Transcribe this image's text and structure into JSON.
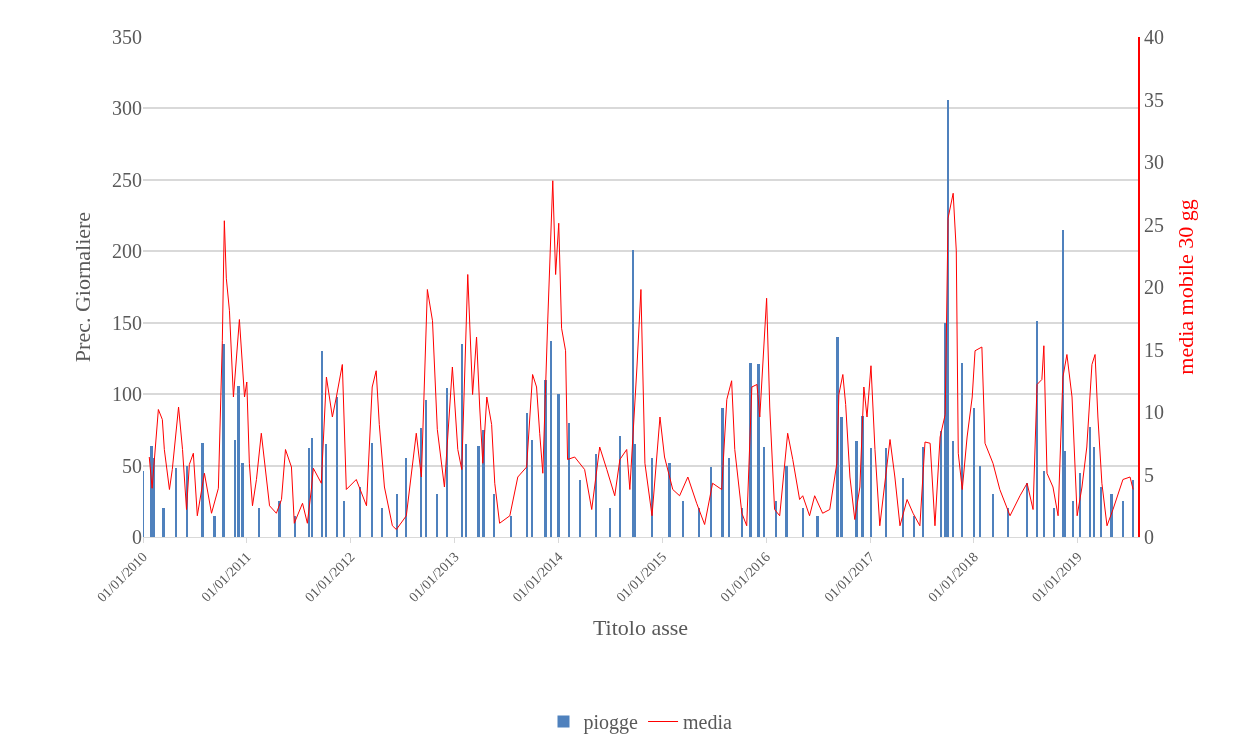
{
  "chart_data": {
    "type": "bar",
    "xlabel": "Titolo asse",
    "ylabel": "Prec. Giornaliere",
    "y2label": "media mobile 30 gg",
    "xlim": [
      "2010-01-01",
      "2019-08-01"
    ],
    "xticks": [
      {
        "value": "2010-01-01",
        "label": "01/01/2010"
      },
      {
        "value": "2011-01-01",
        "label": "01/01/2011"
      },
      {
        "value": "2012-01-01",
        "label": "01/01/2012"
      },
      {
        "value": "2013-01-01",
        "label": "01/01/2013"
      },
      {
        "value": "2014-01-01",
        "label": "01/01/2014"
      },
      {
        "value": "2015-01-01",
        "label": "01/01/2015"
      },
      {
        "value": "2016-01-01",
        "label": "01/01/2016"
      },
      {
        "value": "2017-01-01",
        "label": "01/01/2017"
      },
      {
        "value": "2018-01-01",
        "label": "01/01/2018"
      },
      {
        "value": "2019-01-01",
        "label": "01/01/2019"
      }
    ],
    "ylim": [
      0,
      350
    ],
    "yticks": [
      0,
      50,
      100,
      150,
      200,
      250,
      300,
      350
    ],
    "y2lim": [
      0,
      40
    ],
    "y2ticks": [
      0,
      5,
      10,
      15,
      20,
      25,
      30,
      35,
      40
    ],
    "grid": "y",
    "legend": "bottom",
    "series": [
      {
        "name": "piogge",
        "color": "#4f81bd",
        "x": [
          "2010-01-02",
          "2010-02-01",
          "2010-02-10",
          "2010-03-15",
          "2010-04-28",
          "2010-06-06",
          "2010-07-30",
          "2010-09-10",
          "2010-10-12",
          "2010-11-20",
          "2010-12-04",
          "2010-12-18",
          "2011-02-15",
          "2011-04-27",
          "2011-06-20",
          "2011-08-09",
          "2011-08-20",
          "2011-09-24",
          "2011-10-08",
          "2011-11-16",
          "2011-12-10",
          "2012-02-05",
          "2012-03-17",
          "2012-04-20",
          "2012-06-13",
          "2012-07-15",
          "2012-09-06",
          "2012-09-24",
          "2012-11-01",
          "2012-12-06",
          "2013-01-29",
          "2013-02-11",
          "2013-03-27",
          "2013-04-13",
          "2013-05-20",
          "2013-07-20",
          "2013-09-14",
          "2013-10-02",
          "2013-11-17",
          "2013-12-08",
          "2014-01-02",
          "2014-02-08",
          "2014-03-20",
          "2014-05-15",
          "2014-07-01",
          "2014-08-05",
          "2014-09-21",
          "2014-09-28",
          "2014-11-26",
          "2015-01-27",
          "2015-03-15",
          "2015-05-10",
          "2015-06-23",
          "2015-08-02",
          "2015-08-25",
          "2015-10-10",
          "2015-11-08",
          "2015-12-06",
          "2015-12-27",
          "2016-02-05",
          "2016-03-14",
          "2016-05-10",
          "2016-07-01",
          "2016-09-09",
          "2016-09-23",
          "2016-11-15",
          "2016-12-06",
          "2017-01-04",
          "2017-02-26",
          "2017-04-27",
          "2017-06-05",
          "2017-07-06",
          "2017-09-07",
          "2017-09-24",
          "2017-10-02",
          "2017-10-20",
          "2017-11-21",
          "2018-01-01",
          "2018-01-22",
          "2018-03-10",
          "2018-05-01",
          "2018-07-07",
          "2018-08-11",
          "2018-09-04",
          "2018-10-10",
          "2018-11-10",
          "2018-11-17",
          "2018-12-15",
          "2019-01-09",
          "2019-02-13",
          "2019-02-27",
          "2019-03-25",
          "2019-05-01",
          "2019-06-10",
          "2019-07-15"
        ],
        "values": [
          46,
          64,
          55,
          20,
          48,
          50,
          66,
          15,
          135,
          68,
          106,
          52,
          20,
          25,
          15,
          62,
          69,
          130,
          65,
          98,
          25,
          35,
          66,
          20,
          30,
          55,
          76,
          96,
          30,
          104,
          135,
          65,
          64,
          75,
          30,
          15,
          87,
          68,
          110,
          137,
          100,
          80,
          40,
          58,
          20,
          71,
          201,
          65,
          55,
          52,
          25,
          20,
          49,
          90,
          55,
          20,
          122,
          121,
          63,
          25,
          50,
          20,
          15,
          140,
          84,
          67,
          85,
          62,
          62,
          41,
          15,
          63,
          74,
          150,
          306,
          67,
          122,
          90,
          50,
          30,
          20,
          38,
          151,
          46,
          20,
          215,
          60,
          25,
          45,
          77,
          63,
          35,
          30,
          25,
          40
        ]
      },
      {
        "name": "media",
        "type": "line",
        "axis": "y2",
        "color": "#ff0000",
        "line_style": "solid",
        "x": [
          "2010-01-23",
          "2010-02-02",
          "2010-02-24",
          "2010-03-10",
          "2010-03-17",
          "2010-04-04",
          "2010-04-14",
          "2010-05-06",
          "2010-05-20",
          "2010-06-03",
          "2010-06-13",
          "2010-06-27",
          "2010-07-11",
          "2010-08-05",
          "2010-08-30",
          "2010-09-23",
          "2010-10-07",
          "2010-10-14",
          "2010-10-21",
          "2010-11-01",
          "2010-11-15",
          "2010-12-06",
          "2010-12-24",
          "2011-01-01",
          "2011-01-10",
          "2011-01-21",
          "2011-02-04",
          "2011-02-21",
          "2011-03-22",
          "2011-04-15",
          "2011-05-03",
          "2011-05-17",
          "2011-06-07",
          "2011-06-17",
          "2011-07-16",
          "2011-08-02",
          "2011-08-16",
          "2011-08-23",
          "2011-09-20",
          "2011-10-08",
          "2011-10-29",
          "2011-11-12",
          "2011-12-03",
          "2011-12-17",
          "2012-01-21",
          "2012-02-26",
          "2012-03-17",
          "2012-03-31",
          "2012-04-11",
          "2012-04-29",
          "2012-05-27",
          "2012-06-10",
          "2012-07-15",
          "2012-08-19",
          "2012-09-06",
          "2012-09-27",
          "2012-10-15",
          "2012-11-01",
          "2012-11-26",
          "2012-12-24",
          "2013-01-12",
          "2013-01-26",
          "2013-02-16",
          "2013-03-05",
          "2013-03-19",
          "2013-03-30",
          "2013-04-10",
          "2013-04-24",
          "2013-05-11",
          "2013-05-22",
          "2013-06-08",
          "2013-07-14",
          "2013-08-11",
          "2013-09-11",
          "2013-10-02",
          "2013-10-16",
          "2013-10-27",
          "2013-11-07",
          "2013-11-24",
          "2013-12-12",
          "2013-12-22",
          "2014-01-02",
          "2014-01-12",
          "2014-01-26",
          "2014-02-02",
          "2014-02-27",
          "2014-04-03",
          "2014-04-28",
          "2014-05-26",
          "2014-06-20",
          "2014-07-18",
          "2014-08-05",
          "2014-08-29",
          "2014-09-09",
          "2014-10-04",
          "2014-10-18",
          "2014-11-01",
          "2014-11-26",
          "2014-12-24",
          "2015-01-09",
          "2015-02-07",
          "2015-03-03",
          "2015-04-01",
          "2015-05-02",
          "2015-05-30",
          "2015-06-27",
          "2015-07-29",
          "2015-08-16",
          "2015-09-02",
          "2015-09-13",
          "2015-10-08",
          "2015-10-25",
          "2015-11-12",
          "2015-11-30",
          "2015-12-10",
          "2016-01-03",
          "2016-01-14",
          "2016-01-31",
          "2016-02-18",
          "2016-03-17",
          "2016-04-04",
          "2016-04-28",
          "2016-05-09",
          "2016-06-02",
          "2016-06-20",
          "2016-07-18",
          "2016-08-12",
          "2016-09-06",
          "2016-09-13",
          "2016-09-27",
          "2016-10-07",
          "2016-10-22",
          "2016-11-08",
          "2016-11-26",
          "2016-12-10",
          "2016-12-21",
          "2017-01-04",
          "2017-01-18",
          "2017-02-04",
          "2017-03-12",
          "2017-03-29",
          "2017-04-16",
          "2017-05-11",
          "2017-06-01",
          "2017-06-25",
          "2017-07-13",
          "2017-07-31",
          "2017-08-17",
          "2017-09-04",
          "2017-09-22",
          "2017-10-02",
          "2017-10-20",
          "2017-10-31",
          "2017-11-07",
          "2017-11-21",
          "2017-12-08",
          "2017-12-26",
          "2018-01-05",
          "2018-01-29",
          "2018-02-09",
          "2018-03-09",
          "2018-04-02",
          "2018-05-08",
          "2018-06-12",
          "2018-07-07",
          "2018-07-28",
          "2018-08-11",
          "2018-08-28",
          "2018-09-04",
          "2018-09-15",
          "2018-10-06",
          "2018-10-24",
          "2018-11-10",
          "2018-11-24",
          "2018-12-12",
          "2018-12-30",
          "2019-01-16",
          "2019-02-02",
          "2019-02-20",
          "2019-03-03",
          "2019-03-13",
          "2019-03-27",
          "2019-04-14",
          "2019-05-05",
          "2019-06-09",
          "2019-07-04",
          "2019-07-15"
        ],
        "values": [
          6.4,
          3.9,
          10.2,
          9.4,
          7.0,
          3.8,
          5.4,
          10.4,
          7.0,
          2.2,
          5.8,
          6.7,
          1.7,
          5.1,
          1.9,
          3.9,
          15.7,
          25.3,
          20.7,
          18.1,
          11.2,
          17.4,
          11.2,
          12.4,
          5.9,
          2.5,
          4.6,
          8.3,
          2.5,
          1.9,
          3.0,
          7.0,
          5.6,
          1.1,
          2.7,
          1.1,
          3.8,
          5.5,
          4.3,
          12.8,
          9.6,
          11.2,
          13.8,
          3.8,
          4.6,
          2.5,
          12.0,
          13.3,
          9.0,
          4.0,
          0.9,
          0.6,
          1.7,
          8.3,
          4.8,
          19.8,
          17.3,
          8.6,
          4.0,
          13.6,
          7.0,
          5.4,
          21.0,
          11.4,
          16.0,
          10.4,
          5.9,
          11.2,
          9.0,
          4.3,
          1.1,
          1.7,
          4.8,
          5.6,
          13.0,
          12.0,
          8.3,
          5.1,
          17.1,
          28.5,
          21.0,
          25.1,
          16.7,
          14.9,
          6.2,
          6.4,
          5.4,
          2.2,
          7.2,
          5.4,
          3.3,
          6.2,
          7.0,
          3.8,
          13.6,
          19.8,
          5.9,
          1.7,
          9.6,
          6.4,
          3.8,
          3.3,
          4.8,
          2.7,
          1.0,
          4.3,
          3.8,
          11.0,
          12.5,
          7.0,
          1.9,
          0.9,
          12.0,
          12.2,
          9.6,
          19.1,
          10.4,
          2.2,
          1.7,
          8.3,
          6.2,
          3.0,
          3.3,
          1.7,
          3.3,
          1.9,
          2.2,
          5.9,
          11.4,
          13.0,
          10.6,
          4.8,
          1.4,
          4.0,
          12.0,
          9.6,
          13.7,
          7.0,
          0.9,
          7.8,
          4.8,
          0.9,
          3.0,
          1.9,
          0.9,
          7.6,
          7.5,
          0.9,
          8.0,
          9.8,
          25.5,
          27.5,
          22.9,
          6.7,
          3.8,
          8.0,
          11.2,
          14.9,
          15.2,
          7.5,
          5.9,
          3.8,
          1.7,
          3.3,
          4.3,
          2.2,
          12.2,
          12.6,
          15.3,
          5.1,
          4.0,
          1.7,
          12.8,
          14.6,
          11.2,
          1.7,
          4.0,
          7.2,
          13.8,
          14.6,
          9.6,
          4.3,
          0.9,
          2.2,
          4.6,
          4.8,
          3.8
        ]
      }
    ]
  }
}
